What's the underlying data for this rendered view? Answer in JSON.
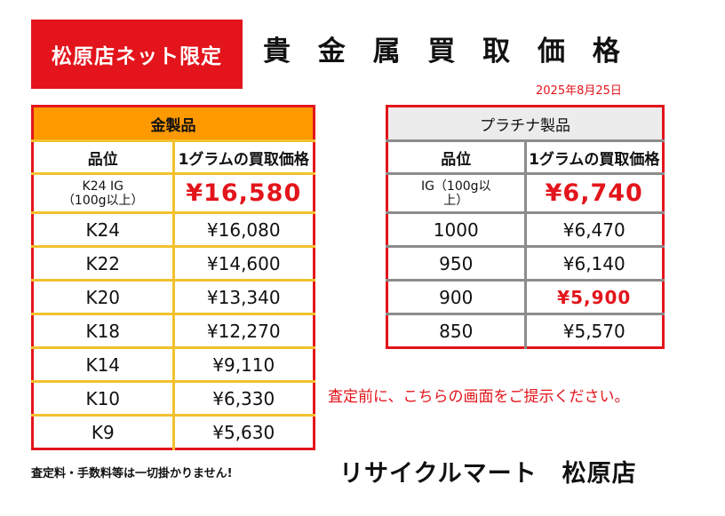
{
  "badge": "松原店ネット限定",
  "title": "貴 金 属 買 取 価 格",
  "date": "2025年8月25日",
  "gold_table": {
    "title": "金製品",
    "col_grade": "品位",
    "col_price": "1グラムの買取価格",
    "rows": [
      {
        "grade": "K24 IG\n（100g以上）",
        "price": "¥16,580"
      },
      {
        "grade": "K24",
        "price": "¥16,080"
      },
      {
        "grade": "K22",
        "price": "¥14,600"
      },
      {
        "grade": "K20",
        "price": "¥13,340"
      },
      {
        "grade": "K18",
        "price": "¥12,270"
      },
      {
        "grade": "K14",
        "price": "¥9,110"
      },
      {
        "grade": "K10",
        "price": "¥6,330"
      },
      {
        "grade": "K9",
        "price": "¥5,630"
      }
    ]
  },
  "platinum_table": {
    "title": "プラチナ製品",
    "col_grade": "品位",
    "col_price": "1グラムの買取価格",
    "rows": [
      {
        "grade": "IG（100g以\n上）",
        "price": "¥6,740"
      },
      {
        "grade": "1000",
        "price": "¥6,470"
      },
      {
        "grade": "950",
        "price": "¥6,140"
      },
      {
        "grade": "900",
        "price": "¥5,900"
      },
      {
        "grade": "850",
        "price": "¥5,570"
      }
    ]
  },
  "note": "査定前に、こちらの画面をご提示ください。",
  "footer_left": "査定料・手数料等は一切掛かりません!",
  "footer_right": "リサイクルマート　松原店",
  "colors": {
    "accent_red": "#e3141b",
    "gold_header": "#ff9900",
    "gold_border": "#f2c12e",
    "platinum_header": "#ececec",
    "platinum_border": "#8c8c8c"
  }
}
